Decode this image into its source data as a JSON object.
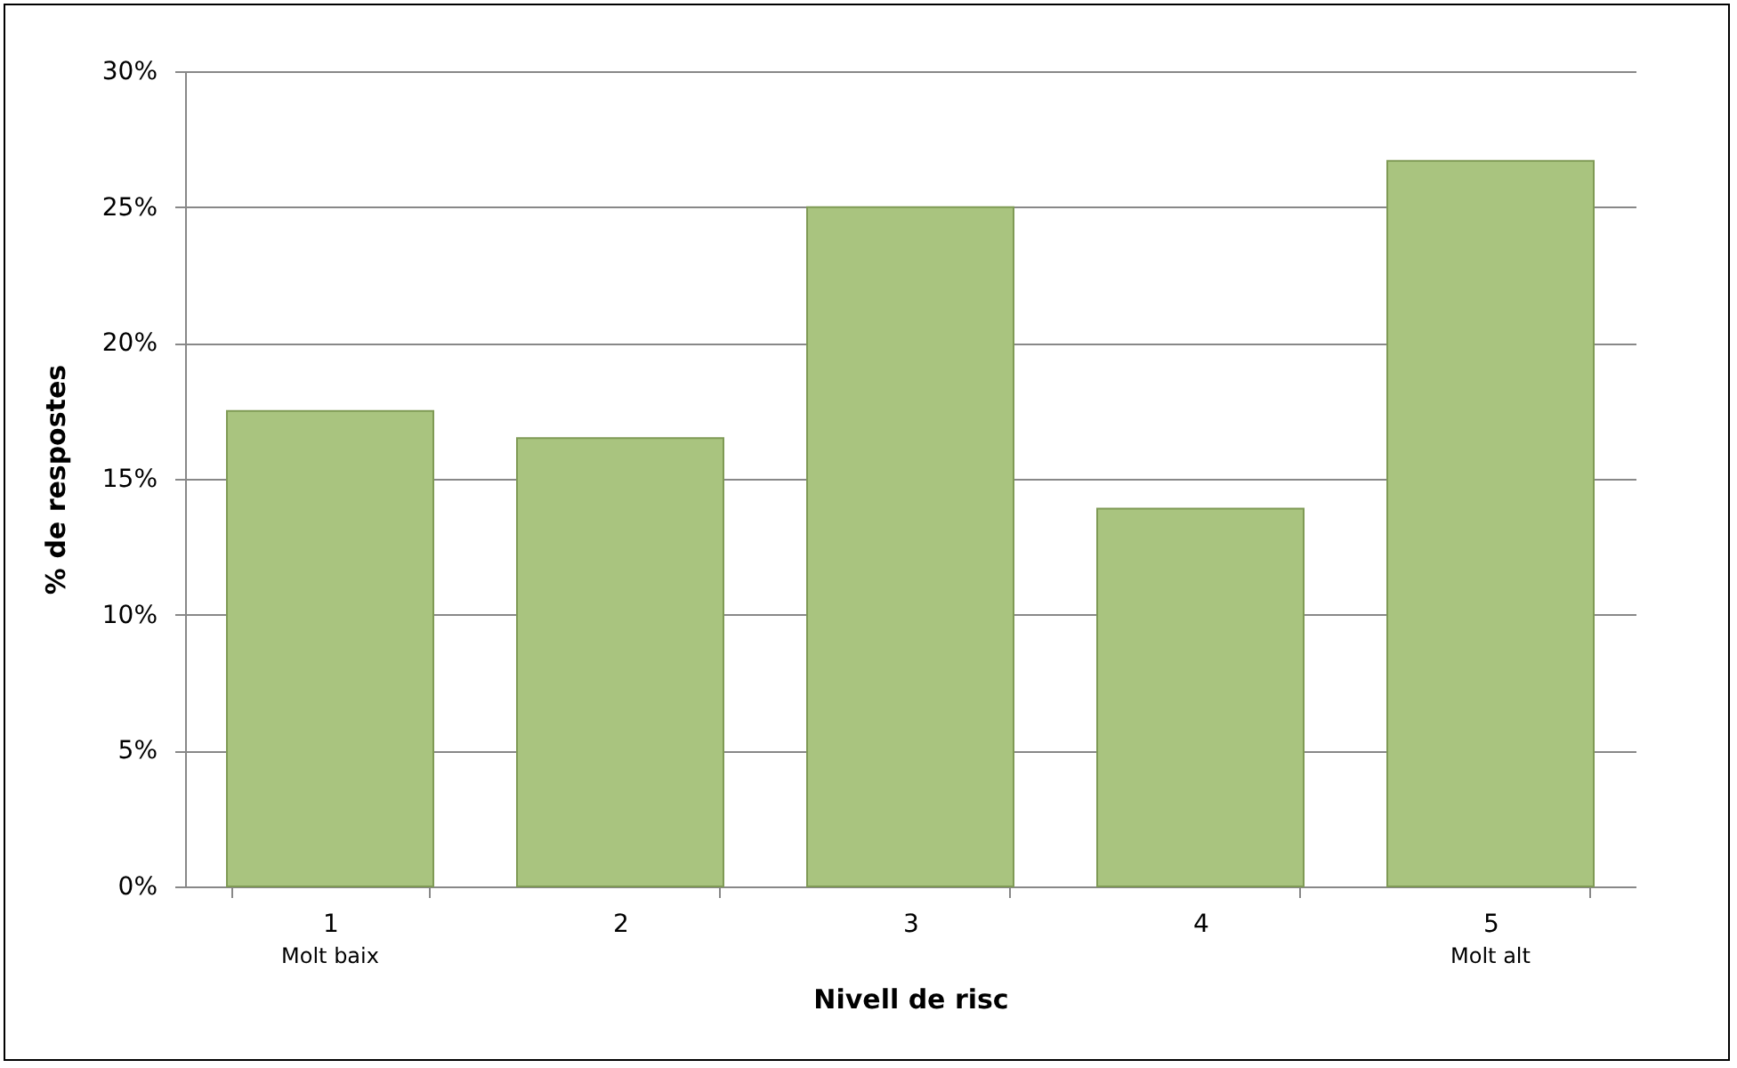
{
  "chart_data": {
    "type": "bar",
    "xlabel": "Nivell de risc",
    "ylabel": "% de respostes",
    "categories": [
      "1",
      "2",
      "3",
      "4",
      "5"
    ],
    "values": [
      17.5,
      16.5,
      25,
      13.9,
      26.7
    ],
    "color": "#a9c47f",
    "ylim": [
      0,
      30
    ],
    "yticks": [
      {
        "value": 0,
        "label": "0%"
      },
      {
        "value": 5,
        "label": "5%"
      },
      {
        "value": 10,
        "label": "10%"
      },
      {
        "value": 15,
        "label": "15%"
      },
      {
        "value": 20,
        "label": "20%"
      },
      {
        "value": 25,
        "label": "25%"
      },
      {
        "value": 30,
        "label": "30%"
      }
    ],
    "grid": "y",
    "annotations": [
      "Molt baix",
      "Molt alt"
    ]
  }
}
